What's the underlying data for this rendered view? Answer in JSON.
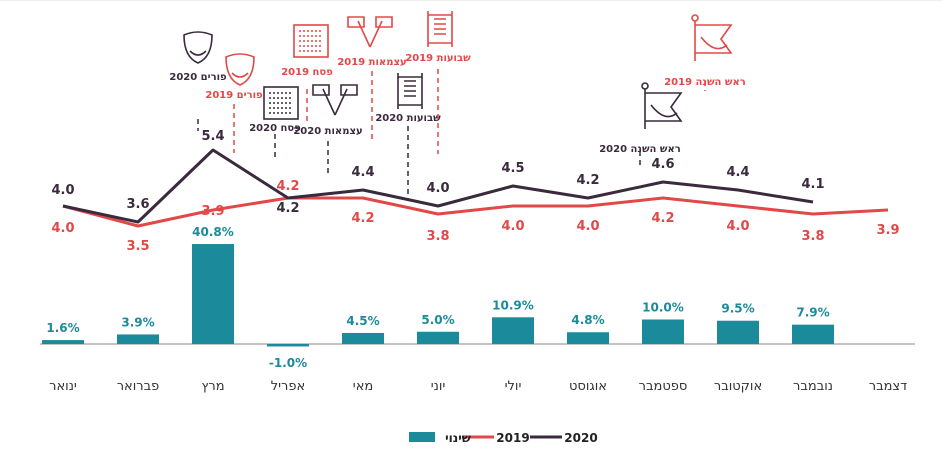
{
  "chart_data": {
    "type": "bar+line",
    "categories": [
      "ינואר",
      "פברואר",
      "מרץ",
      "אפריל",
      "מאי",
      "יוני",
      "יולי",
      "אוגוסט",
      "ספטמבר",
      "אוקטובר",
      "נובמבר",
      "דצמבר"
    ],
    "series": [
      {
        "name": "שינוי",
        "type": "bar",
        "color": "#1b8a9a",
        "values": [
          1.6,
          3.9,
          40.8,
          -1.0,
          4.5,
          5.0,
          10.9,
          4.8,
          10.0,
          9.5,
          7.9,
          null
        ],
        "labels": [
          "1.6%",
          "3.9%",
          "40.8%",
          "-1.0%",
          "4.5%",
          "5.0%",
          "10.9%",
          "4.8%",
          "10.0%",
          "9.5%",
          "7.9%",
          ""
        ]
      },
      {
        "name": "2019",
        "type": "line",
        "color": "#e34848",
        "values": [
          4.0,
          3.5,
          3.9,
          4.2,
          4.2,
          3.8,
          4.0,
          4.0,
          4.2,
          4.0,
          3.8,
          3.9
        ],
        "labels": [
          "4.0",
          "3.5",
          "3.9",
          "4.2",
          "4.2",
          "3.8",
          "4.0",
          "4.0",
          "4.2",
          "4.0",
          "3.8",
          "3.9"
        ]
      },
      {
        "name": "2020",
        "type": "line",
        "color": "#3b2a3d",
        "values": [
          4.0,
          3.6,
          5.4,
          4.2,
          4.4,
          4.0,
          4.5,
          4.2,
          4.6,
          4.4,
          4.1,
          null
        ],
        "labels": [
          "4.0",
          "3.6",
          "5.4",
          "4.2",
          "4.4",
          "4.0",
          "4.5",
          "4.2",
          "4.6",
          "4.4",
          "4.1",
          ""
        ]
      }
    ],
    "annotations": [
      {
        "text": "פורים 2020",
        "series": "2020",
        "month": 2,
        "icon": "mask-icon"
      },
      {
        "text": "פורים 2019",
        "series": "2019",
        "month": 2,
        "icon": "mask-icon"
      },
      {
        "text": "פסח 2020",
        "series": "2020",
        "month": 3,
        "icon": "matzah-icon"
      },
      {
        "text": "פסח 2019",
        "series": "2019",
        "month": 3,
        "icon": "matzah-icon"
      },
      {
        "text": "עצמאות 2020",
        "series": "2020",
        "month": 4,
        "icon": "flags-icon"
      },
      {
        "text": "עצמאות 2019",
        "series": "2019",
        "month": 4,
        "icon": "flags-icon"
      },
      {
        "text": "שבועות 2020",
        "series": "2020",
        "month": 5,
        "icon": "torah-icon"
      },
      {
        "text": "שבועות 2019",
        "series": "2019",
        "month": 5,
        "icon": "torah-icon"
      },
      {
        "text": "ראש השנה 2020",
        "series": "2020",
        "month": 8,
        "icon": "shofar-flag-icon"
      },
      {
        "text": "ראש השנה 2019",
        "series": "2019",
        "month": 9,
        "icon": "shofar-flag-icon"
      }
    ],
    "legend": [
      "שינוי",
      "2019",
      "2020"
    ],
    "legend_position": "bottom-center"
  }
}
